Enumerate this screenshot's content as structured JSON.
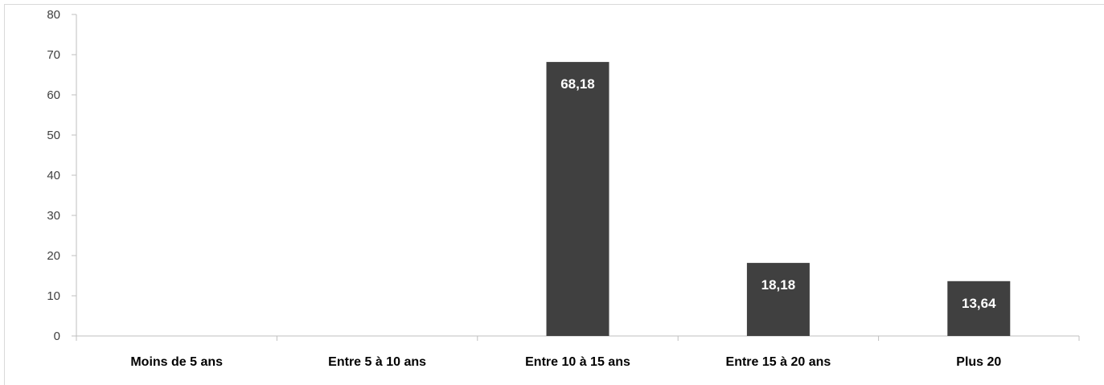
{
  "chart_data": {
    "type": "bar",
    "categories": [
      "Moins de 5 ans",
      "Entre 5 à 10 ans",
      "Entre 10 à 15 ans",
      "Entre 15 à 20 ans",
      "Plus 20"
    ],
    "values": [
      0,
      0,
      68.18,
      18.18,
      13.64
    ],
    "data_labels": [
      "",
      "",
      "68,18",
      "18,18",
      "13,64"
    ],
    "yticks": [
      0,
      10,
      20,
      30,
      40,
      50,
      60,
      70,
      80
    ],
    "ylim": [
      0,
      80
    ],
    "grid": false,
    "legend": "none",
    "colors": {
      "bar": "#404040",
      "axis": "#bfbfbf",
      "data_label": "#ffffff"
    }
  }
}
